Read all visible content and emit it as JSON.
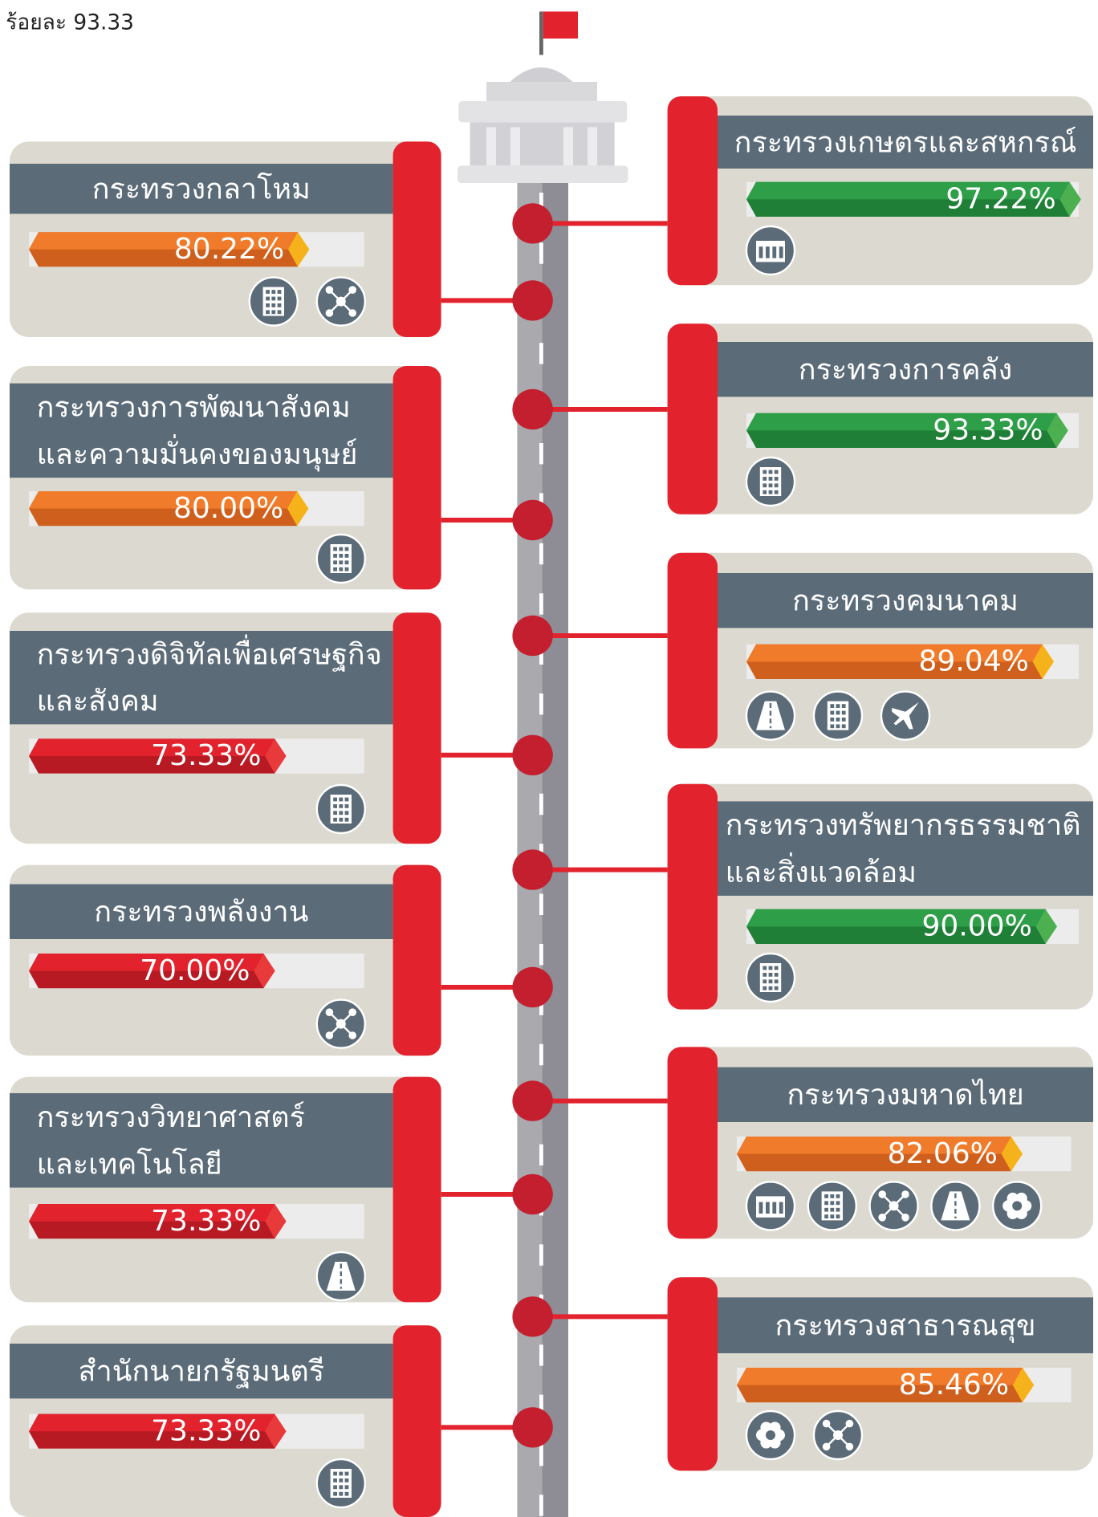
{
  "header_note": "ร้อยละ 93.33",
  "left": [
    {
      "name": [
        "กระทรวงกลาโหม"
      ],
      "value": 80.22,
      "value_label": "80.22%",
      "color": "#f07b2a"
    },
    {
      "name": [
        "กระทรวงการพัฒนาสังคม",
        "และความมั่นคงของมนุษย์"
      ],
      "value": 80.0,
      "value_label": "80.00%",
      "color": "#f07b2a"
    },
    {
      "name": [
        "กระทรวงดิจิทัลเพื่อเศรษฐกิจ",
        "และสังคม"
      ],
      "value": 73.33,
      "value_label": "73.33%",
      "color": "#e2232e"
    },
    {
      "name": [
        "กระทรวงพลังงาน"
      ],
      "value": 70.0,
      "value_label": "70.00%",
      "color": "#e2232e"
    },
    {
      "name": [
        "กระทรวงวิทยาศาสตร์",
        "และเทคโนโลยี"
      ],
      "value": 73.33,
      "value_label": "73.33%",
      "color": "#e2232e"
    },
    {
      "name": [
        "สำนักนายกรัฐมนตรี"
      ],
      "value": 73.33,
      "value_label": "73.33%",
      "color": "#e2232e"
    }
  ],
  "right": [
    {
      "name": [
        "กระทรวงเกษตรและสหกรณ์"
      ],
      "value": 97.22,
      "value_label": "97.22%",
      "color": "#2e9e48"
    },
    {
      "name": [
        "กระทรวงการคลัง"
      ],
      "value": 93.33,
      "value_label": "93.33%",
      "color": "#2e9e48"
    },
    {
      "name": [
        "กระทรวงคมนาคม"
      ],
      "value": 89.04,
      "value_label": "89.04%",
      "color": "#f07b2a"
    },
    {
      "name": [
        "กระทรวงทรัพยากรธรรมชาติ",
        "และสิ่งแวดล้อม"
      ],
      "value": 90.0,
      "value_label": "90.00%",
      "color": "#2e9e48"
    },
    {
      "name": [
        "กระทรวงมหาดไทย"
      ],
      "value": 82.06,
      "value_label": "82.06%",
      "color": "#f07b2a"
    },
    {
      "name": [
        "กระทรวงสาธารณสุข"
      ],
      "value": 85.46,
      "value_label": "85.46%",
      "color": "#f07b2a"
    }
  ]
}
